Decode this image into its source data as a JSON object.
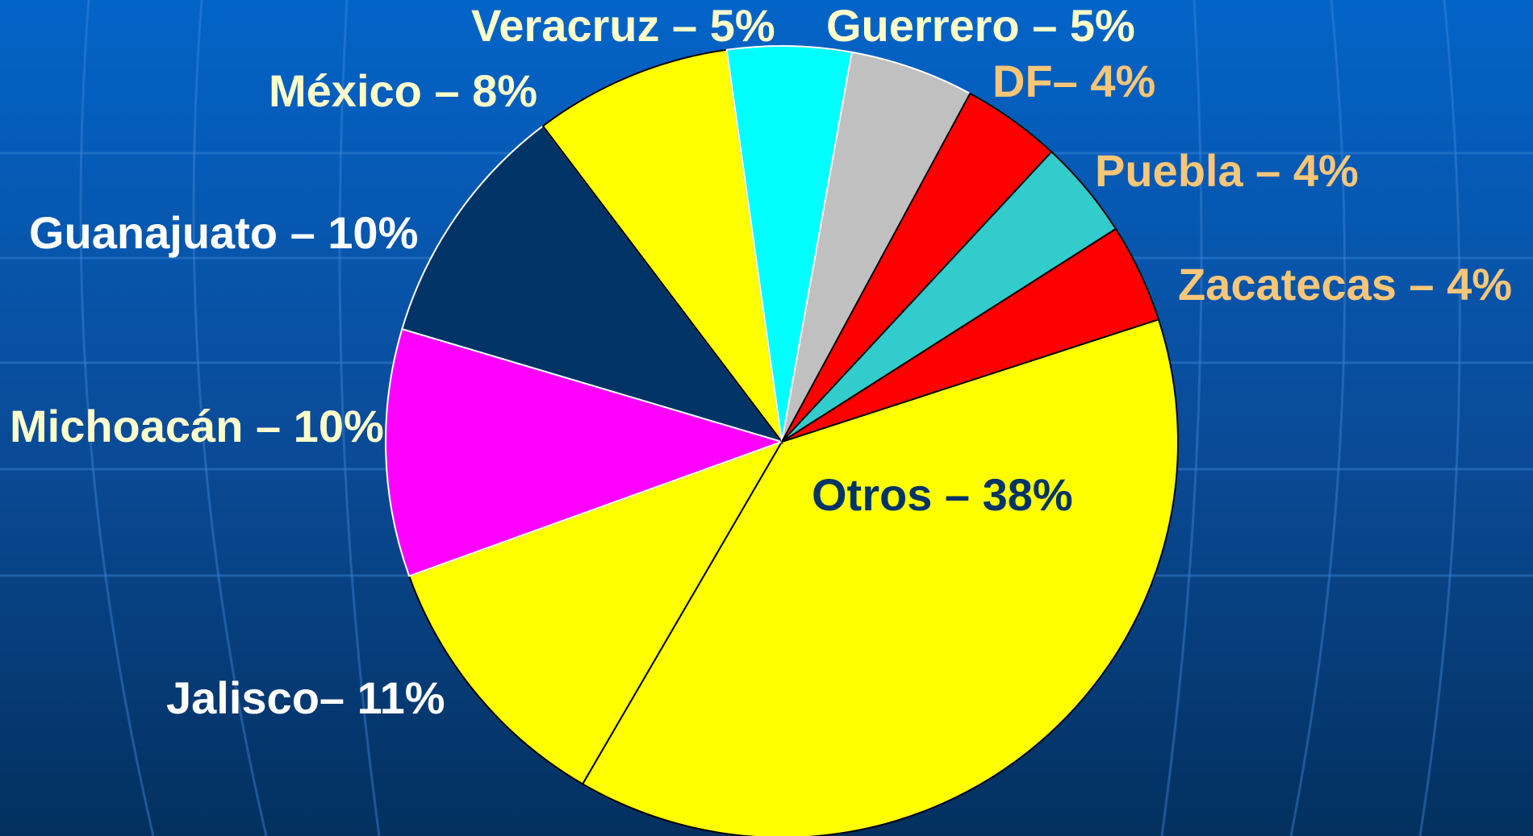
{
  "chart_data": {
    "type": "pie",
    "value_labels": [
      "Otros – 38%",
      "Jalisco– 11%",
      "Michoacán – 10%",
      "Guanajuato – 10%",
      "México – 8%",
      "Veracruz – 5%",
      "Guerrero – 5%",
      "DF– 4%",
      "Puebla – 4%",
      "Zacatecas – 4%"
    ],
    "values": [
      38,
      11,
      10,
      10,
      8,
      5,
      5,
      4,
      4,
      4
    ],
    "colors": [
      "#ffff00",
      "#ffff00",
      "#ff00ff",
      "#003366",
      "#ffff00",
      "#00ffff",
      "#c0c0c0",
      "#ff0000",
      "#33cccc",
      "#ff0000"
    ],
    "label_colors": [
      "#003366",
      "#ffffff",
      "#ffffcc",
      "#ffffff",
      "#ffffcc",
      "#ffffcc",
      "#ffffcc",
      "#f8c678",
      "#f8c678",
      "#f8c678"
    ]
  }
}
